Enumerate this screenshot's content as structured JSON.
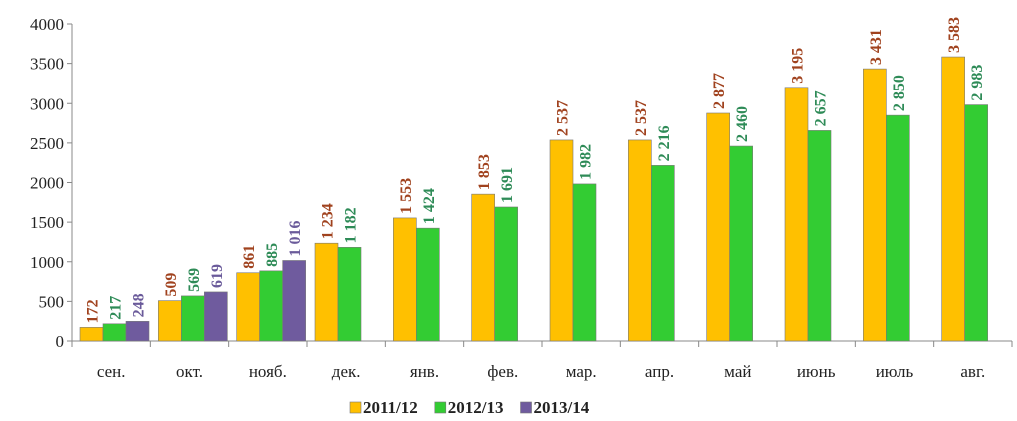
{
  "chart_data": {
    "type": "bar",
    "categories": [
      "сен.",
      "окт.",
      "нояб.",
      "дек.",
      "янв.",
      "фев.",
      "мар.",
      "апр.",
      "май",
      "июнь",
      "июль",
      "авг."
    ],
    "series": [
      {
        "name": "2011/12",
        "color": "#FFC000",
        "label_color": "#A0421E",
        "values": [
          172,
          509,
          861,
          1234,
          1553,
          1853,
          2537,
          2537,
          2877,
          3195,
          3431,
          3583
        ],
        "value_labels": [
          "172",
          "509",
          "861",
          "1 234",
          "1 553",
          "1 853",
          "2 537",
          "2 537",
          "2 877",
          "3 195",
          "3 431",
          "3 583"
        ]
      },
      {
        "name": "2012/13",
        "color": "#33CC33",
        "label_color": "#2E8B57",
        "values": [
          217,
          569,
          885,
          1182,
          1424,
          1691,
          1982,
          2216,
          2460,
          2657,
          2850,
          2983
        ],
        "value_labels": [
          "217",
          "569",
          "885",
          "1 182",
          "1 424",
          "1 691",
          "1 982",
          "2 216",
          "2 460",
          "2 657",
          "2 850",
          "2 983"
        ]
      },
      {
        "name": "2013/14",
        "color": "#6F5B9E",
        "label_color": "#6A5A9A",
        "values": [
          248,
          619,
          1016,
          null,
          null,
          null,
          null,
          null,
          null,
          null,
          null,
          null
        ],
        "value_labels": [
          "248",
          "619",
          "1 016",
          null,
          null,
          null,
          null,
          null,
          null,
          null,
          null,
          null
        ]
      }
    ],
    "ylim": [
      0,
      4000
    ],
    "yticks": [
      0,
      500,
      1000,
      1500,
      2000,
      2500,
      3000,
      3500,
      4000
    ],
    "grid": false
  }
}
